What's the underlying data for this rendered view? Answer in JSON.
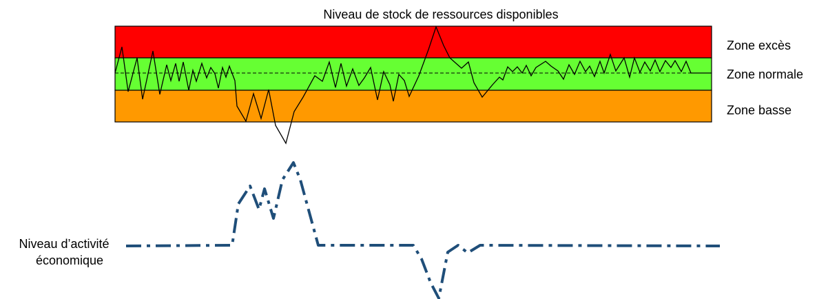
{
  "title": "Niveau de stock de ressources disponibles",
  "zones": {
    "excess": {
      "label": "Zone excès",
      "color": "#ff0000"
    },
    "normal": {
      "label": "Zone normale",
      "color": "#66ff33"
    },
    "low": {
      "label": "Zone basse",
      "color": "#ff9900"
    }
  },
  "activity_label": {
    "line1": "Niveau d’activité",
    "line2": "économique"
  },
  "colors": {
    "stock_line": "#000000",
    "activity_line": "#1f4e79",
    "reference_line": "#000000",
    "band_border": "#000000"
  }
}
